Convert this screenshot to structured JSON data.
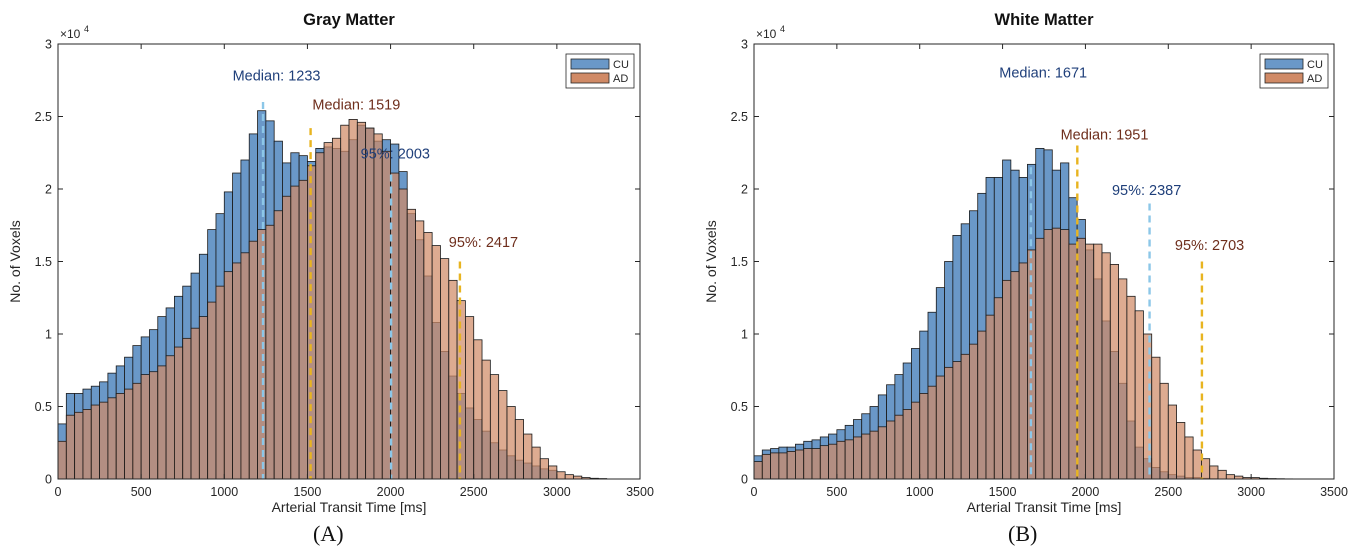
{
  "chart_data": [
    {
      "type": "bar",
      "panel_label": "(A)",
      "title": "Gray Matter",
      "xlabel": "Arterial Transit Time [ms]",
      "ylabel": "No. of Voxels",
      "y_exponent_label": "×10",
      "y_exponent_power": "4",
      "xlim": [
        0,
        3500
      ],
      "ylim": [
        0,
        3
      ],
      "x_ticks": [
        "0",
        "500",
        "1000",
        "1500",
        "2000",
        "2500",
        "3000",
        "3500"
      ],
      "y_ticks": [
        "0",
        "0.5",
        "1",
        "1.5",
        "2",
        "2.5",
        "3"
      ],
      "grid": false,
      "legend_position": "top-right",
      "bin_width": 50,
      "bin_start": 0,
      "series": [
        {
          "name": "CU",
          "color": "#6a98c8",
          "values": [
            0.38,
            0.59,
            0.59,
            0.62,
            0.64,
            0.67,
            0.73,
            0.78,
            0.84,
            0.92,
            0.98,
            1.03,
            1.12,
            1.18,
            1.26,
            1.33,
            1.42,
            1.55,
            1.72,
            1.83,
            1.98,
            2.11,
            2.2,
            2.38,
            2.54,
            2.47,
            2.33,
            2.18,
            2.25,
            2.23,
            2.19,
            2.28,
            2.29,
            2.28,
            2.26,
            2.34,
            2.44,
            2.42,
            2.33,
            2.34,
            2.31,
            2.12,
            1.83,
            1.65,
            1.4,
            1.08,
            0.88,
            0.71,
            0.59,
            0.49,
            0.41,
            0.33,
            0.25,
            0.2,
            0.16,
            0.13,
            0.11,
            0.09,
            0.07,
            0.06
          ]
        },
        {
          "name": "AD",
          "color": "#d08a66",
          "values": [
            0.26,
            0.44,
            0.46,
            0.48,
            0.51,
            0.53,
            0.56,
            0.59,
            0.62,
            0.66,
            0.72,
            0.74,
            0.78,
            0.85,
            0.91,
            0.97,
            1.04,
            1.12,
            1.22,
            1.33,
            1.43,
            1.49,
            1.56,
            1.64,
            1.72,
            1.75,
            1.85,
            1.95,
            2.02,
            2.06,
            2.16,
            2.25,
            2.32,
            2.35,
            2.44,
            2.48,
            2.46,
            2.42,
            2.38,
            2.26,
            2.11,
            2.0,
            1.86,
            1.78,
            1.7,
            1.61,
            1.52,
            1.37,
            1.23,
            1.12,
            0.96,
            0.82,
            0.72,
            0.61,
            0.5,
            0.41,
            0.31,
            0.22,
            0.14,
            0.09,
            0.05,
            0.03,
            0.02,
            0.01,
            0.005,
            0.003
          ]
        }
      ],
      "annotations": [
        {
          "label": "Median: 1233",
          "x": 1233,
          "line_top": 2.6,
          "color": "#1f3f7a",
          "line_color": "#8cc7e8",
          "text_x": 1050,
          "text_y": 2.75
        },
        {
          "label": "Median: 1519",
          "x": 1519,
          "line_top": 2.42,
          "color": "#6e2e1c",
          "line_color": "#e8b420",
          "text_x": 1530,
          "text_y": 2.55
        },
        {
          "label": "95%: 2003",
          "x": 2003,
          "line_top": 2.1,
          "color": "#1f3f7a",
          "line_color": "#8cc7e8",
          "text_x": 1820,
          "text_y": 2.21
        },
        {
          "label": "95%: 2417",
          "x": 2417,
          "line_top": 1.5,
          "color": "#6e2e1c",
          "line_color": "#e8b420",
          "text_x": 2350,
          "text_y": 1.6
        }
      ]
    },
    {
      "type": "bar",
      "panel_label": "(B)",
      "title": "White Matter",
      "xlabel": "Arterial Transit Time [ms]",
      "ylabel": "No. of Voxels",
      "y_exponent_label": "×10",
      "y_exponent_power": "4",
      "xlim": [
        0,
        3500
      ],
      "ylim": [
        0,
        3
      ],
      "x_ticks": [
        "0",
        "500",
        "1000",
        "1500",
        "2000",
        "2500",
        "3000",
        "3500"
      ],
      "y_ticks": [
        "0",
        "0.5",
        "1",
        "1.5",
        "2",
        "2.5",
        "3"
      ],
      "grid": false,
      "legend_position": "top-right",
      "bin_width": 50,
      "bin_start": 0,
      "series": [
        {
          "name": "CU",
          "color": "#6a98c8",
          "values": [
            0.16,
            0.2,
            0.21,
            0.22,
            0.22,
            0.24,
            0.26,
            0.27,
            0.29,
            0.31,
            0.34,
            0.37,
            0.41,
            0.45,
            0.5,
            0.58,
            0.65,
            0.72,
            0.8,
            0.9,
            1.02,
            1.15,
            1.32,
            1.5,
            1.68,
            1.76,
            1.85,
            1.97,
            2.08,
            2.08,
            2.2,
            2.13,
            2.08,
            2.17,
            2.28,
            2.27,
            2.13,
            2.18,
            1.94,
            1.79,
            1.58,
            1.38,
            1.09,
            0.88,
            0.66,
            0.4,
            0.22,
            0.14,
            0.08,
            0.05,
            0.03,
            0.02,
            0.01,
            0.01,
            0.005,
            0.002
          ]
        },
        {
          "name": "AD",
          "color": "#d08a66",
          "values": [
            0.12,
            0.17,
            0.18,
            0.18,
            0.19,
            0.2,
            0.21,
            0.21,
            0.23,
            0.24,
            0.26,
            0.27,
            0.29,
            0.31,
            0.33,
            0.36,
            0.4,
            0.44,
            0.48,
            0.53,
            0.59,
            0.64,
            0.71,
            0.77,
            0.81,
            0.86,
            0.93,
            1.02,
            1.13,
            1.25,
            1.37,
            1.43,
            1.49,
            1.58,
            1.66,
            1.72,
            1.73,
            1.72,
            1.62,
            1.66,
            1.62,
            1.62,
            1.56,
            1.48,
            1.38,
            1.26,
            1.16,
            1.0,
            0.84,
            0.66,
            0.51,
            0.39,
            0.29,
            0.2,
            0.14,
            0.09,
            0.06,
            0.03,
            0.02,
            0.01,
            0.01,
            0.005,
            0.003,
            0.002,
            0.001
          ]
        }
      ],
      "annotations": [
        {
          "label": "Median: 1671",
          "x": 1671,
          "line_top": 2.15,
          "color": "#1f3f7a",
          "line_color": "#8cc7e8",
          "text_x": 1480,
          "text_y": 2.77
        },
        {
          "label": "Median: 1951",
          "x": 1951,
          "line_top": 2.3,
          "color": "#6e2e1c",
          "line_color": "#e8b420",
          "text_x": 1850,
          "text_y": 2.34
        },
        {
          "label": "95%: 2387",
          "x": 2387,
          "line_top": 1.9,
          "color": "#1f3f7a",
          "line_color": "#8cc7e8",
          "text_x": 2160,
          "text_y": 1.96
        },
        {
          "label": "95%: 2703",
          "x": 2703,
          "line_top": 1.5,
          "color": "#6e2e1c",
          "line_color": "#e8b420",
          "text_x": 2540,
          "text_y": 1.58
        }
      ]
    }
  ]
}
